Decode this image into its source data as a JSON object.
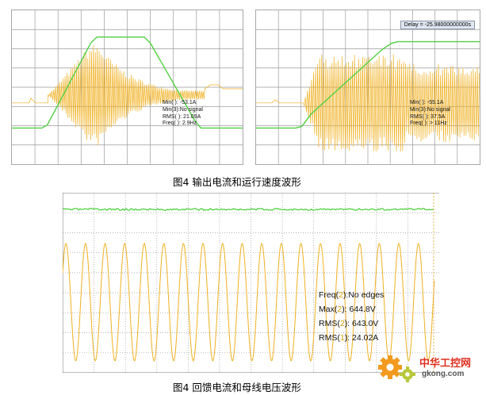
{
  "figure1": {
    "caption": "图4  输出电流和运行速度波形",
    "left_panel": {
      "readouts": [
        "Min( ): -53.1A",
        "Min(3):No signal",
        "RMS( ): 21.09A",
        "Freq( ): 2.9Hz"
      ]
    },
    "right_panel": {
      "delay_label": "Delay = -25.98000000000s",
      "readouts": [
        "Min( ): -55.1A",
        "Min(3):No signal",
        "RMS( ): 37.5A",
        "Freq( ): > 11Hz"
      ]
    }
  },
  "figure2": {
    "caption": "图4  回馈电流和母线电压波形",
    "readouts": [
      {
        "prefix": "Freq(",
        "ch": "2",
        "suffix": "):No edges"
      },
      {
        "prefix": "Max(",
        "ch": "2",
        "suffix": "): 644.8V"
      },
      {
        "prefix": "RMS(",
        "ch": "2",
        "suffix": "): 643.0V"
      },
      {
        "prefix": "RMS(",
        "ch": "1",
        "suffix": "): 24.02A"
      }
    ]
  },
  "watermark": {
    "brand": "中华工控网",
    "domain": "gkong.com"
  },
  "colors": {
    "current_trace": "#f0b020",
    "speed_trace": "#50d040",
    "grid": "#9a9a9a",
    "channel_highlight": "#d8a000",
    "watermark_red": "#e03020",
    "watermark_orange": "#f39a1e"
  }
}
